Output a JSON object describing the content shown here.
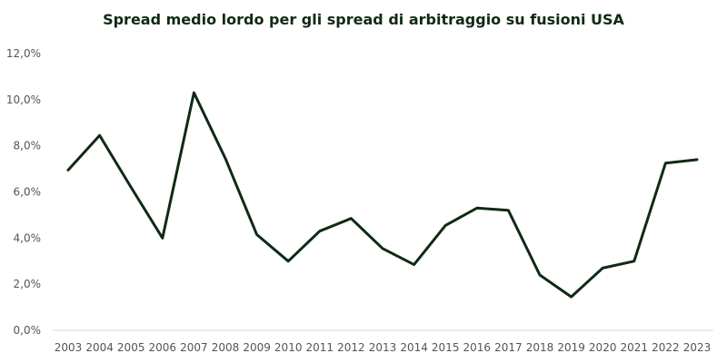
{
  "chart_data": {
    "type": "line",
    "title": "Spread medio lordo per gli spread di arbitraggio su fusioni USA",
    "xlabel": "",
    "ylabel": "",
    "categories": [
      "2003",
      "2004",
      "2005",
      "2006",
      "2007",
      "2008",
      "2009",
      "2010",
      "2011",
      "2012",
      "2013",
      "2014",
      "2015",
      "2016",
      "2017",
      "2018",
      "2019",
      "2020",
      "2021",
      "2022",
      "2023"
    ],
    "series": [
      {
        "values": [
          6.95,
          8.45,
          6.2,
          4.0,
          10.3,
          7.45,
          4.15,
          3.0,
          4.3,
          4.85,
          3.55,
          2.85,
          4.55,
          5.3,
          5.2,
          2.4,
          1.45,
          2.7,
          3.0,
          7.25,
          7.4
        ]
      }
    ],
    "ylim": [
      0,
      12
    ],
    "yticks": [
      "0,0%",
      "2,0%",
      "4,0%",
      "6,0%",
      "8,0%",
      "10,0%",
      "12,0%"
    ],
    "ytick_values": [
      0,
      2,
      4,
      6,
      8,
      10,
      12
    ],
    "grid": false,
    "legend": "none",
    "colors": {
      "line": "#0f2a14",
      "axis": "#d9d9d9"
    }
  }
}
